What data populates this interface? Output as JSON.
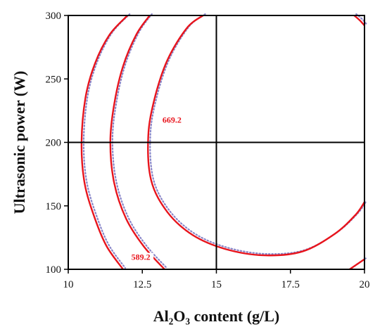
{
  "chart_data": {
    "type": "contour",
    "title": "",
    "xlabel": "Al₂O₃ content (g/L)",
    "ylabel": "Ultrasonic power (W)",
    "xlim": [
      10,
      20
    ],
    "ylim": [
      100,
      300
    ],
    "x_ticks": [
      {
        "value": 10,
        "label": "10"
      },
      {
        "value": 12.5,
        "label": "12.5"
      },
      {
        "value": 15,
        "label": "15"
      },
      {
        "value": 17.5,
        "label": "17.5"
      },
      {
        "value": 20,
        "label": "20"
      }
    ],
    "y_ticks": [
      {
        "value": 100,
        "label": "100"
      },
      {
        "value": 150,
        "label": "150"
      },
      {
        "value": 200,
        "label": "200"
      },
      {
        "value": 250,
        "label": "250"
      },
      {
        "value": 300,
        "label": "300"
      }
    ],
    "crosshair": {
      "x": 15,
      "y": 200
    },
    "colors": {
      "contour": "#e8141c",
      "dotted": "#8a86c8",
      "crosshair": "#000000"
    },
    "contours": [
      {
        "points": [
          [
            12.0,
            300
          ],
          [
            11.4,
            285
          ],
          [
            10.9,
            262
          ],
          [
            10.58,
            235
          ],
          [
            10.45,
            200
          ],
          [
            10.55,
            168
          ],
          [
            10.9,
            140
          ],
          [
            11.3,
            118
          ],
          [
            11.85,
            100
          ]
        ]
      },
      {
        "label": "589.2",
        "label_at": [
          12.45,
          108
        ],
        "points": [
          [
            12.75,
            300
          ],
          [
            12.3,
            285
          ],
          [
            11.85,
            260
          ],
          [
            11.55,
            230
          ],
          [
            11.42,
            200
          ],
          [
            11.55,
            168
          ],
          [
            11.95,
            140
          ],
          [
            12.55,
            118
          ],
          [
            13.25,
            100
          ]
        ]
      },
      {
        "label": "669.2",
        "label_at": [
          13.5,
          216
        ],
        "points": [
          [
            14.55,
            300
          ],
          [
            14.0,
            290
          ],
          [
            13.35,
            265
          ],
          [
            12.92,
            235
          ],
          [
            12.7,
            205
          ],
          [
            12.8,
            170
          ],
          [
            13.35,
            145
          ],
          [
            14.2,
            127
          ],
          [
            15.3,
            116
          ],
          [
            16.6,
            111
          ],
          [
            17.9,
            114
          ],
          [
            19.0,
            128
          ],
          [
            19.7,
            143
          ],
          [
            20.0,
            153
          ]
        ]
      },
      {
        "points": [
          [
            19.65,
            300
          ],
          [
            19.85,
            296
          ],
          [
            20.0,
            292
          ]
        ]
      },
      {
        "points": [
          [
            19.5,
            100
          ],
          [
            19.75,
            104
          ],
          [
            20.0,
            108
          ]
        ]
      }
    ]
  }
}
